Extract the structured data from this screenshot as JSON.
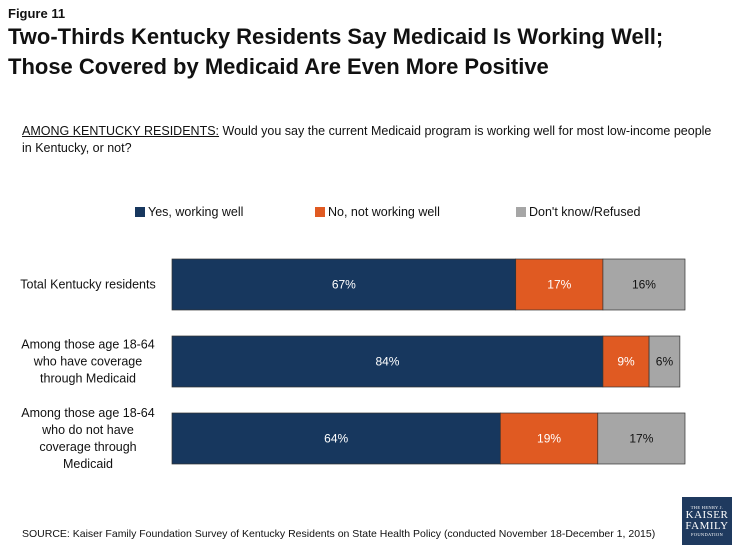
{
  "figure_label": "Figure 11",
  "title_lines": [
    "Two-Thirds Kentucky Residents Say Medicaid Is Working Well;",
    "Those Covered by Medicaid Are Even More Positive"
  ],
  "question": {
    "prefix": "AMONG KENTUCKY RESIDENTS:",
    "text": " Would you say the current Medicaid program is working well for most low-income people in Kentucky, or not?"
  },
  "source": "SOURCE: Kaiser Family Foundation Survey of Kentucky Residents on State Health Policy (conducted November 18-December 1, 2015)",
  "logo": {
    "line1": "THE HENRY J.",
    "line2": "KAISER",
    "line3": "FAMILY",
    "line4": "FOUNDATION"
  },
  "chart_data": {
    "type": "bar",
    "orientation": "horizontal",
    "stacked": true,
    "unit": "%",
    "categories": [
      "Total Kentucky residents",
      "Among those age 18-64 who have coverage through Medicaid",
      "Among those age 18-64 who do not have coverage through Medicaid"
    ],
    "category_label_lines": [
      [
        "Total Kentucky residents"
      ],
      [
        "Among those age 18-64",
        "who have coverage",
        "through Medicaid"
      ],
      [
        "Among those age 18-64",
        "who do not have",
        "coverage through",
        "Medicaid"
      ]
    ],
    "series": [
      {
        "name": "Yes, working well",
        "color": "#17375e",
        "label_color": "#ffffff",
        "values": [
          67,
          84,
          64
        ]
      },
      {
        "name": "No, not working well",
        "color": "#e05a22",
        "label_color": "#ffffff",
        "values": [
          17,
          9,
          19
        ]
      },
      {
        "name": "Don't know/Refused",
        "color": "#a6a6a6",
        "label_color": "#111111",
        "values": [
          16,
          6,
          17
        ]
      }
    ],
    "legend_position": "top",
    "grid": false
  }
}
